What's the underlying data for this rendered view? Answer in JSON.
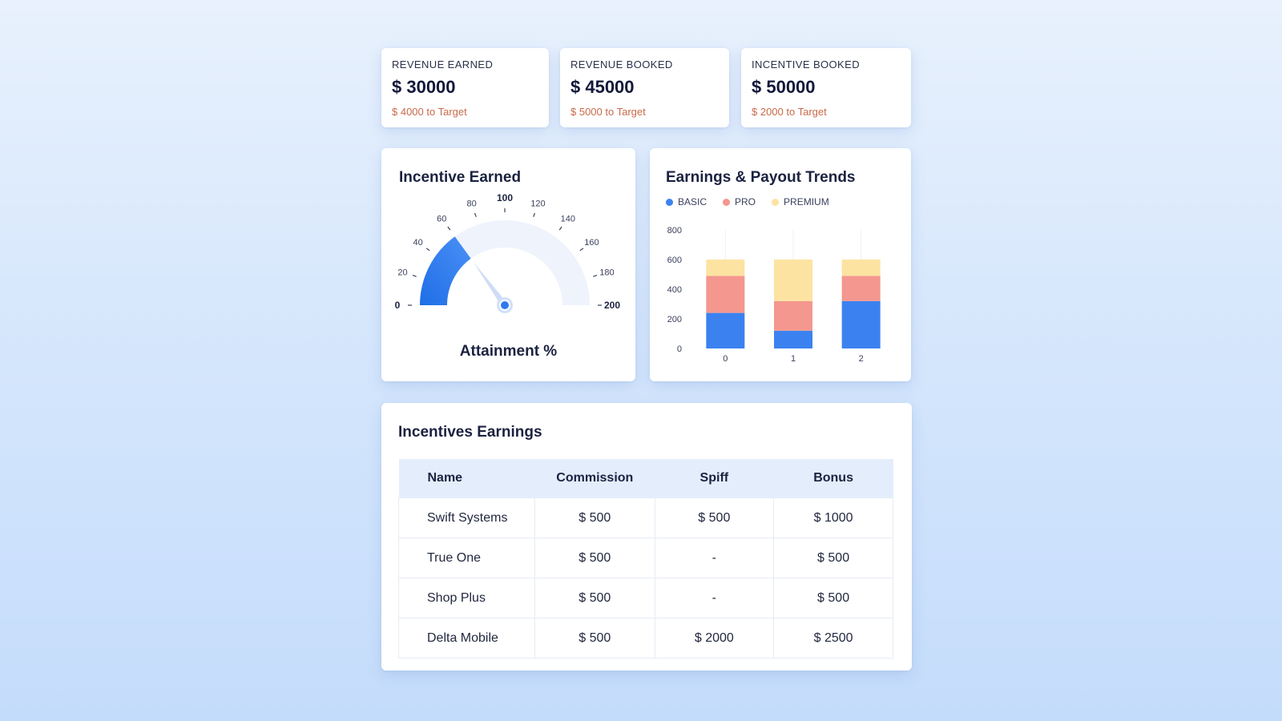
{
  "kpis": [
    {
      "label": "REVENUE EARNED",
      "value": "$ 30000",
      "sub": "$ 4000 to Target"
    },
    {
      "label": "REVENUE BOOKED",
      "value": "$ 45000",
      "sub": "$ 5000 to Target"
    },
    {
      "label": "INCENTIVE BOOKED",
      "value": "$ 50000",
      "sub": "$ 2000 to Target"
    }
  ],
  "gauge": {
    "title": "Incentive Earned",
    "caption": "Attainment %",
    "min": 0,
    "max": 200,
    "value": 60,
    "ticks": [
      "0",
      "20",
      "40",
      "60",
      "80",
      "100",
      "120",
      "140",
      "160",
      "180",
      "200"
    ],
    "color_fill": "#2f7af0",
    "color_track": "#eef3fc"
  },
  "chart_data": {
    "type": "bar",
    "title": "Earnings & Payout Trends",
    "categories": [
      "0",
      "1",
      "2"
    ],
    "series": [
      {
        "name": "BASIC",
        "values": [
          240,
          120,
          320
        ],
        "color": "#3b82f0"
      },
      {
        "name": "PRO",
        "values": [
          250,
          200,
          170
        ],
        "color": "#f4978e"
      },
      {
        "name": "PREMIUM",
        "values": [
          110,
          280,
          110
        ],
        "color": "#fde3a1"
      }
    ],
    "ylim": [
      0,
      800
    ],
    "yticks": [
      "0",
      "200",
      "400",
      "600",
      "800"
    ],
    "stacked": true,
    "grid": false,
    "legend": "top-left"
  },
  "table": {
    "title": "Incentives Earnings",
    "headers": [
      "Name",
      "Commission",
      "Spiff",
      "Bonus"
    ],
    "rows": [
      [
        "Swift Systems",
        "$ 500",
        "$ 500",
        "$ 1000"
      ],
      [
        "True One",
        "$ 500",
        "-",
        "$ 500"
      ],
      [
        "Shop Plus",
        "$ 500",
        "-",
        "$ 500"
      ],
      [
        "Delta Mobile",
        "$ 500",
        "$ 2000",
        "$ 2500"
      ]
    ]
  }
}
